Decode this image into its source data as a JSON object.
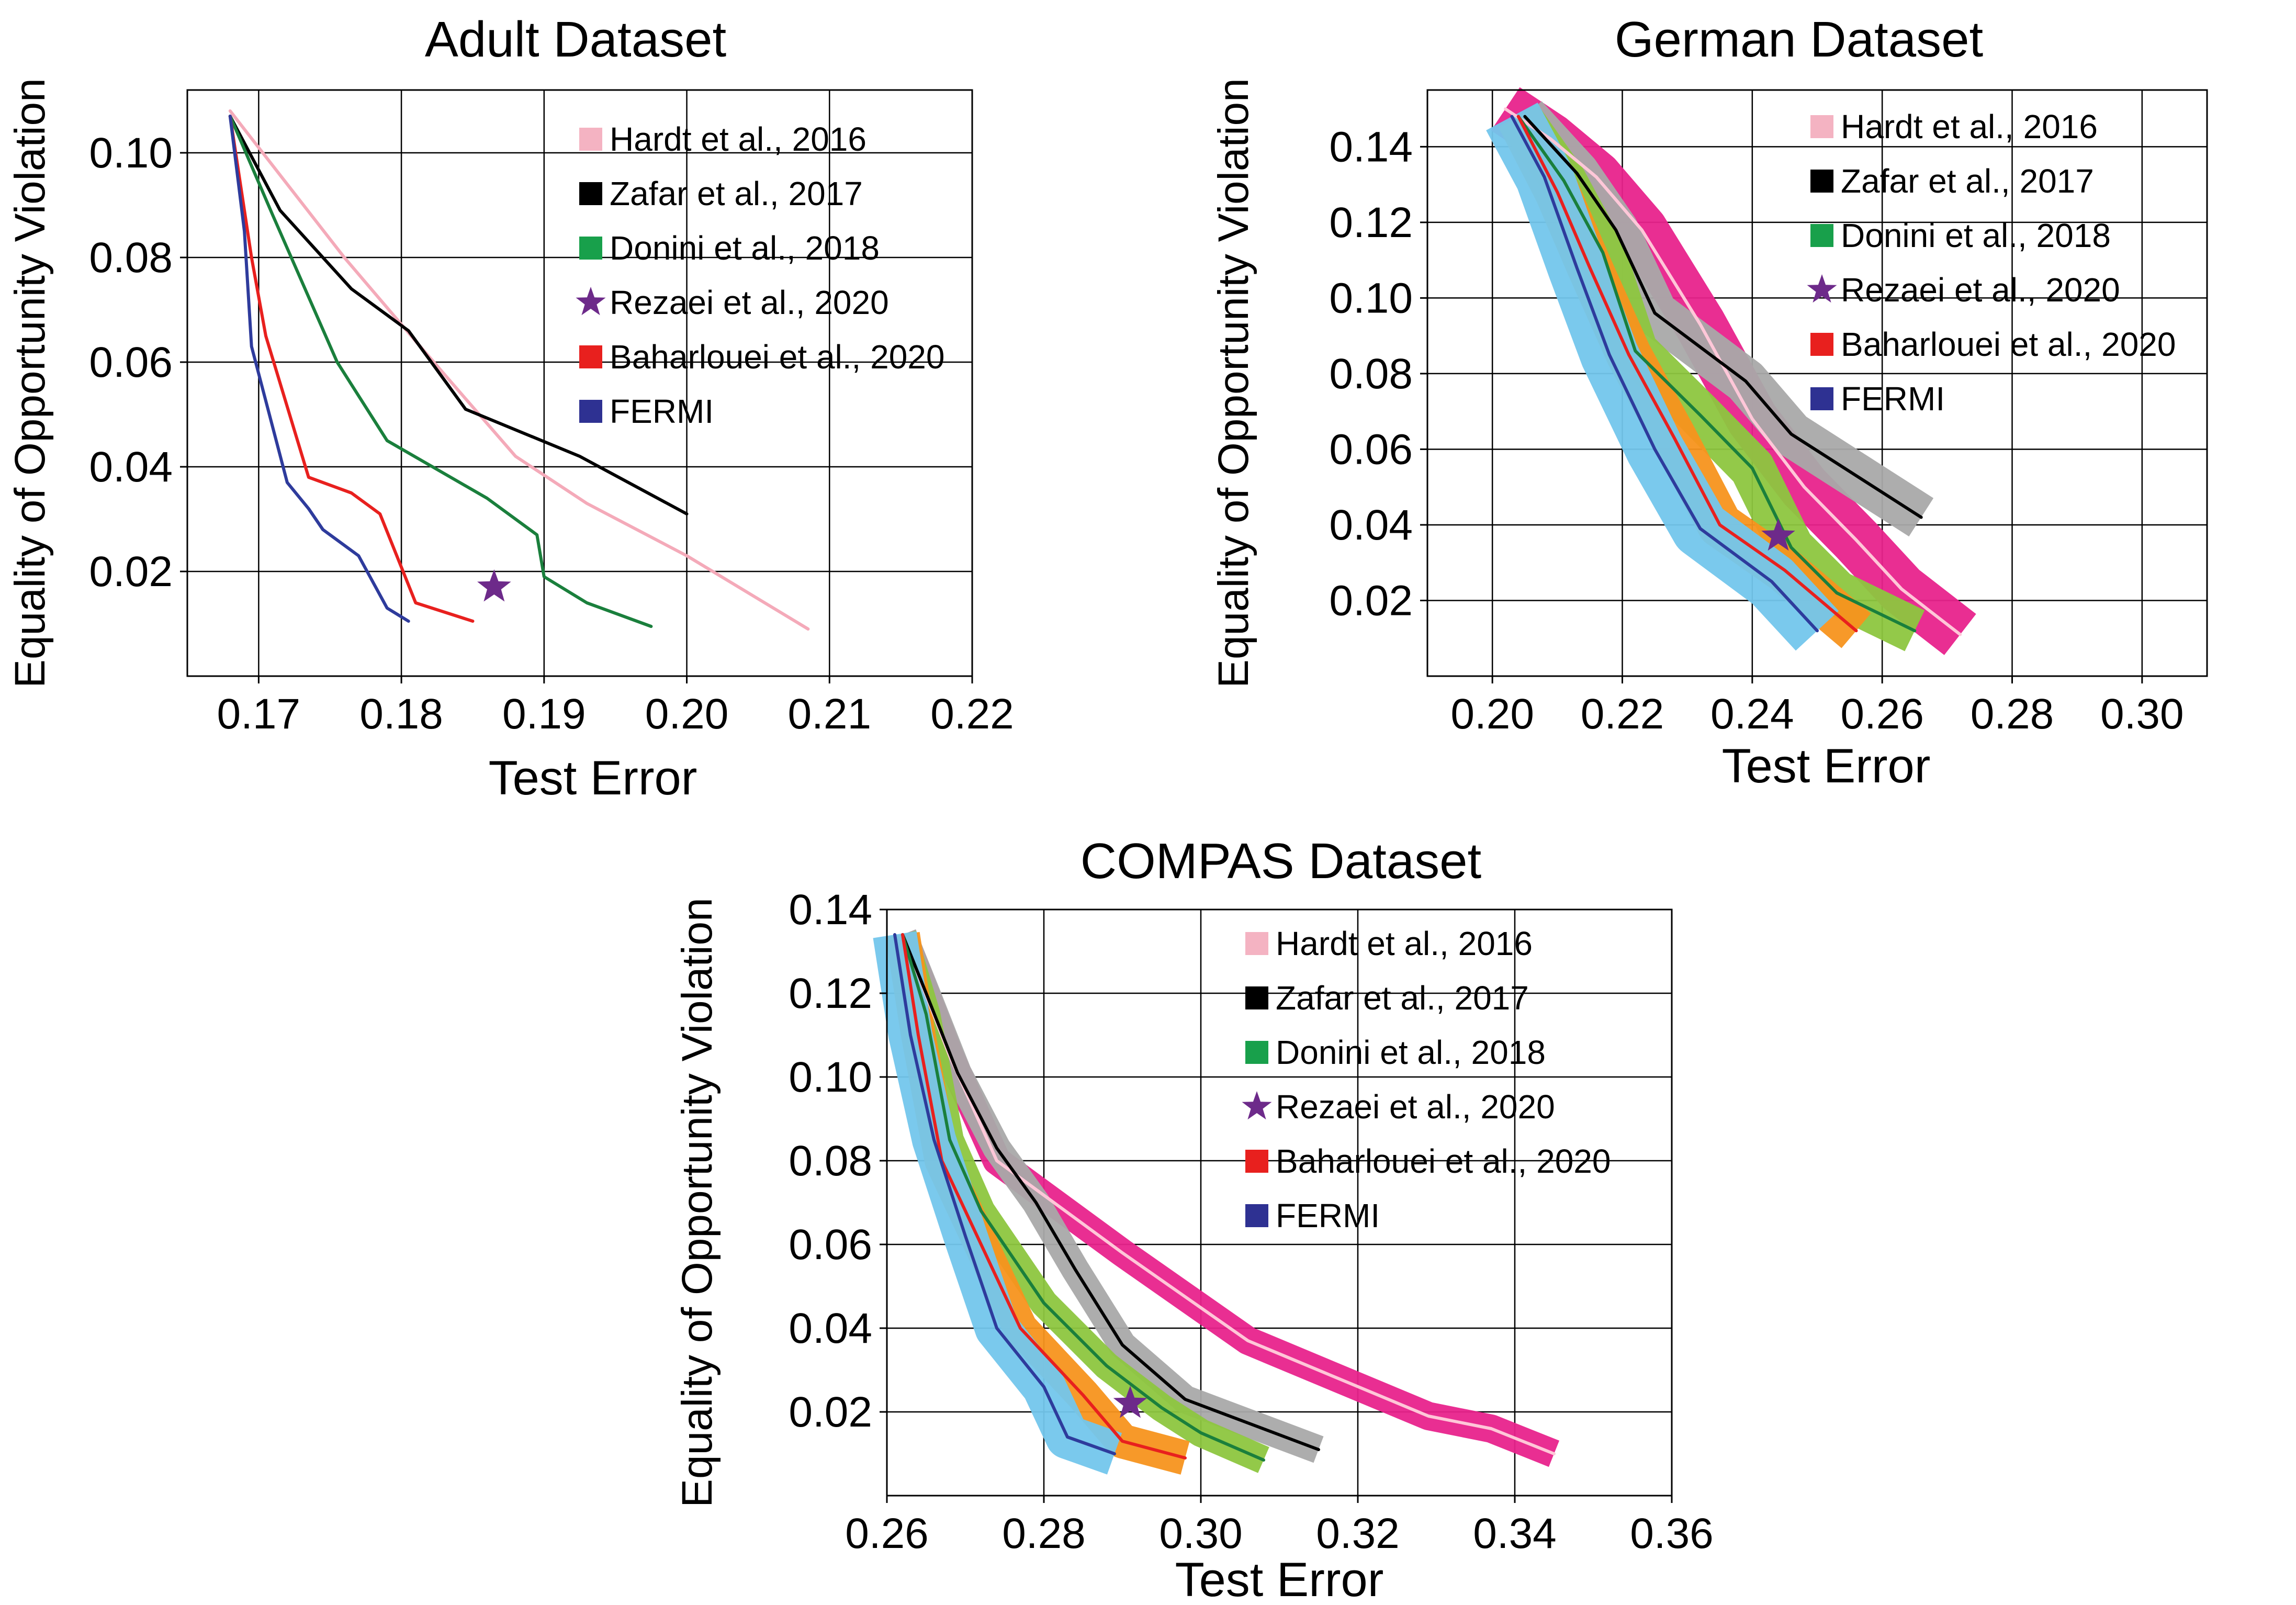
{
  "chart_data": [
    {
      "type": "line",
      "title": "Adult Dataset",
      "xlabel": "Test Error",
      "ylabel": "Equality of Opportunity Violation",
      "xlim": [
        0.165,
        0.22
      ],
      "ylim": [
        0.0,
        0.112
      ],
      "xticks": [
        0.17,
        0.18,
        0.19,
        0.2,
        0.21,
        0.22
      ],
      "xtick_labels": [
        "0.17",
        "0.18",
        "0.19",
        "0.20",
        "0.21",
        "0.22"
      ],
      "yticks": [
        0.02,
        0.04,
        0.06,
        0.08,
        0.1
      ],
      "ytick_labels": [
        "0.02",
        "0.04",
        "0.06",
        "0.08",
        "0.10"
      ],
      "grid": true,
      "legend_position": "top-right",
      "series": [
        {
          "name": "Hardt et al., 2016",
          "color": "#f4aab9",
          "band": false,
          "x": [
            0.168,
            0.172,
            0.176,
            0.181,
            0.188,
            0.193,
            0.2,
            0.2085
          ],
          "y": [
            0.108,
            0.094,
            0.08,
            0.064,
            0.042,
            0.033,
            0.023,
            0.009
          ]
        },
        {
          "name": "Zafar et al., 2017",
          "color": "#000000",
          "band": false,
          "x": [
            0.168,
            0.1715,
            0.1765,
            0.1805,
            0.1845,
            0.1925,
            0.2
          ],
          "y": [
            0.107,
            0.089,
            0.074,
            0.066,
            0.051,
            0.042,
            0.031
          ]
        },
        {
          "name": "Donini et al., 2018",
          "color": "#1a7f3c",
          "band": false,
          "x": [
            0.168,
            0.171,
            0.1755,
            0.179,
            0.186,
            0.1895,
            0.19,
            0.193,
            0.1975
          ],
          "y": [
            0.107,
            0.088,
            0.06,
            0.045,
            0.034,
            0.027,
            0.019,
            0.014,
            0.0095
          ]
        },
        {
          "name": "Baharlouei et al., 2020",
          "color": "#e8201e",
          "band": false,
          "x": [
            0.168,
            0.1695,
            0.1705,
            0.1735,
            0.1765,
            0.1785,
            0.181,
            0.185
          ],
          "y": [
            0.107,
            0.08,
            0.065,
            0.038,
            0.035,
            0.031,
            0.014,
            0.0105
          ]
        },
        {
          "name": "FERMI",
          "color": "#2e3b9c",
          "band": false,
          "x": [
            0.168,
            0.169,
            0.1695,
            0.172,
            0.1735,
            0.1745,
            0.177,
            0.179,
            0.1805
          ],
          "y": [
            0.107,
            0.085,
            0.063,
            0.037,
            0.032,
            0.028,
            0.023,
            0.013,
            0.0105
          ]
        }
      ],
      "points": [
        {
          "name": "Rezaei et al., 2020",
          "color": "#6d2a8a",
          "marker": "star",
          "x": 0.1865,
          "y": 0.017
        }
      ],
      "legend": [
        {
          "label": "Hardt et al., 2016",
          "color": "#f4b3c2",
          "marker": "square"
        },
        {
          "label": "Zafar et al., 2017",
          "color": "#000000",
          "marker": "square"
        },
        {
          "label": "Donini et al., 2018",
          "color": "#18a04b",
          "marker": "square"
        },
        {
          "label": "Rezaei et al., 2020",
          "color": "#6d2a8a",
          "marker": "star"
        },
        {
          "label": "Baharlouei et al., 2020",
          "color": "#e8201e",
          "marker": "square"
        },
        {
          "label": "FERMI",
          "color": "#2e3192",
          "marker": "square"
        }
      ]
    },
    {
      "type": "line",
      "title": "German Dataset",
      "xlabel": "Test Error",
      "ylabel": "Equality of Opportunity Violation",
      "xlim": [
        0.19,
        0.31
      ],
      "ylim": [
        0.0,
        0.155
      ],
      "xticks": [
        0.2,
        0.22,
        0.24,
        0.26,
        0.28,
        0.3
      ],
      "xtick_labels": [
        "0.20",
        "0.22",
        "0.24",
        "0.26",
        "0.28",
        "0.30"
      ],
      "yticks": [
        0.02,
        0.04,
        0.06,
        0.08,
        0.1,
        0.12,
        0.14
      ],
      "ytick_labels": [
        "0.02",
        "0.04",
        "0.06",
        "0.08",
        "0.10",
        "0.12",
        "0.14"
      ],
      "grid": true,
      "legend_position": "top-right",
      "series": [
        {
          "name": "Hardt et al., 2016",
          "color": "#ffc7d8",
          "band": true,
          "band_color": "#e8238c",
          "band_halfwidth": 0.004,
          "x": [
            0.202,
            0.209,
            0.216,
            0.223,
            0.232,
            0.24,
            0.248,
            0.256,
            0.263,
            0.272
          ],
          "y": [
            0.15,
            0.142,
            0.132,
            0.118,
            0.093,
            0.068,
            0.05,
            0.036,
            0.023,
            0.011
          ]
        },
        {
          "name": "Zafar et al., 2017",
          "color": "#000000",
          "band": true,
          "band_color": "#a9a9a9",
          "band_halfwidth": 0.0035,
          "x": [
            0.205,
            0.213,
            0.219,
            0.225,
            0.239,
            0.246,
            0.256,
            0.266
          ],
          "y": [
            0.148,
            0.133,
            0.118,
            0.096,
            0.078,
            0.064,
            0.053,
            0.042
          ]
        },
        {
          "name": "Donini et al., 2018",
          "color": "#1a7f3c",
          "band": true,
          "band_color": "#8dc63f",
          "band_halfwidth": 0.0035,
          "x": [
            0.204,
            0.211,
            0.217,
            0.222,
            0.232,
            0.24,
            0.246,
            0.253,
            0.265
          ],
          "y": [
            0.148,
            0.131,
            0.112,
            0.086,
            0.069,
            0.055,
            0.034,
            0.022,
            0.012
          ]
        },
        {
          "name": "Baharlouei et al., 2020",
          "color": "#e8201e",
          "band": true,
          "band_color": "#f7941d",
          "band_halfwidth": 0.0035,
          "x": [
            0.204,
            0.21,
            0.215,
            0.221,
            0.228,
            0.235,
            0.245,
            0.256
          ],
          "y": [
            0.148,
            0.128,
            0.108,
            0.085,
            0.063,
            0.04,
            0.028,
            0.012
          ]
        },
        {
          "name": "FERMI",
          "color": "#2e3b9c",
          "band": true,
          "band_color": "#73c6ec",
          "band_halfwidth": 0.0045,
          "x": [
            0.203,
            0.208,
            0.213,
            0.218,
            0.225,
            0.232,
            0.243,
            0.25
          ],
          "y": [
            0.148,
            0.132,
            0.108,
            0.085,
            0.06,
            0.039,
            0.025,
            0.012
          ]
        }
      ],
      "points": [
        {
          "name": "Rezaei et al., 2020",
          "color": "#6d2a8a",
          "marker": "star",
          "x": 0.244,
          "y": 0.037
        }
      ],
      "legend": [
        {
          "label": "Hardt et al., 2016",
          "color": "#f4b3c2",
          "marker": "square"
        },
        {
          "label": "Zafar et al., 2017",
          "color": "#000000",
          "marker": "square"
        },
        {
          "label": "Donini et al., 2018",
          "color": "#18a04b",
          "marker": "square"
        },
        {
          "label": "Rezaei et al., 2020",
          "color": "#6d2a8a",
          "marker": "star"
        },
        {
          "label": "Baharlouei et al., 2020",
          "color": "#e8201e",
          "marker": "square"
        },
        {
          "label": "FERMI",
          "color": "#2e3192",
          "marker": "square"
        }
      ]
    },
    {
      "type": "line",
      "title": "COMPAS Dataset",
      "xlabel": "Test Error",
      "ylabel": "Equality of Opportunity Violation",
      "xlim": [
        0.26,
        0.36
      ],
      "ylim": [
        0.0,
        0.14
      ],
      "xticks": [
        0.26,
        0.28,
        0.3,
        0.32,
        0.34,
        0.36
      ],
      "xtick_labels": [
        "0.26",
        "0.28",
        "0.30",
        "0.32",
        "0.34",
        "0.36"
      ],
      "yticks": [
        0.02,
        0.04,
        0.06,
        0.08,
        0.1,
        0.12,
        0.14
      ],
      "ytick_labels": [
        "0.02",
        "0.04",
        "0.06",
        "0.08",
        "0.10",
        "0.12",
        "0.14"
      ],
      "grid": true,
      "legend_position": "top-right",
      "series": [
        {
          "name": "Hardt et al., 2016",
          "color": "#ffc7d8",
          "band": true,
          "band_color": "#e8238c",
          "band_halfwidth": 0.0018,
          "x": [
            0.262,
            0.268,
            0.274,
            0.29,
            0.306,
            0.329,
            0.337,
            0.345
          ],
          "y": [
            0.134,
            0.105,
            0.08,
            0.058,
            0.037,
            0.019,
            0.016,
            0.01
          ]
        },
        {
          "name": "Zafar et al., 2017",
          "color": "#000000",
          "band": true,
          "band_color": "#a9a9a9",
          "band_halfwidth": 0.0018,
          "x": [
            0.262,
            0.265,
            0.269,
            0.274,
            0.279,
            0.284,
            0.29,
            0.298,
            0.315
          ],
          "y": [
            0.134,
            0.12,
            0.101,
            0.083,
            0.07,
            0.054,
            0.036,
            0.023,
            0.011
          ]
        },
        {
          "name": "Donini et al., 2018",
          "color": "#1a7f3c",
          "band": true,
          "band_color": "#8dc63f",
          "band_halfwidth": 0.0018,
          "x": [
            0.262,
            0.265,
            0.268,
            0.272,
            0.28,
            0.288,
            0.295,
            0.3,
            0.308
          ],
          "y": [
            0.134,
            0.115,
            0.085,
            0.068,
            0.046,
            0.031,
            0.021,
            0.015,
            0.0085
          ]
        },
        {
          "name": "Baharlouei et al., 2020",
          "color": "#e8201e",
          "band": true,
          "band_color": "#f7941d",
          "band_halfwidth": 0.0022,
          "x": [
            0.262,
            0.264,
            0.267,
            0.272,
            0.277,
            0.285,
            0.29,
            0.298
          ],
          "y": [
            0.134,
            0.11,
            0.08,
            0.06,
            0.04,
            0.024,
            0.013,
            0.009
          ]
        },
        {
          "name": "FERMI",
          "color": "#2e3b9c",
          "band": true,
          "band_color": "#73c6ec",
          "band_halfwidth": 0.0028,
          "x": [
            0.261,
            0.263,
            0.266,
            0.27,
            0.274,
            0.28,
            0.283,
            0.289
          ],
          "y": [
            0.134,
            0.11,
            0.085,
            0.062,
            0.04,
            0.026,
            0.014,
            0.01
          ]
        }
      ],
      "points": [
        {
          "name": "Rezaei et al., 2020",
          "color": "#6d2a8a",
          "marker": "star",
          "x": 0.291,
          "y": 0.022
        }
      ],
      "legend": [
        {
          "label": "Hardt et al., 2016",
          "color": "#f4b3c2",
          "marker": "square"
        },
        {
          "label": "Zafar et al., 2017",
          "color": "#000000",
          "marker": "square"
        },
        {
          "label": "Donini et al., 2018",
          "color": "#18a04b",
          "marker": "square"
        },
        {
          "label": "Rezaei et al., 2020",
          "color": "#6d2a8a",
          "marker": "star"
        },
        {
          "label": "Baharlouei et al., 2020",
          "color": "#e8201e",
          "marker": "square"
        },
        {
          "label": "FERMI",
          "color": "#2e3192",
          "marker": "square"
        }
      ]
    }
  ]
}
